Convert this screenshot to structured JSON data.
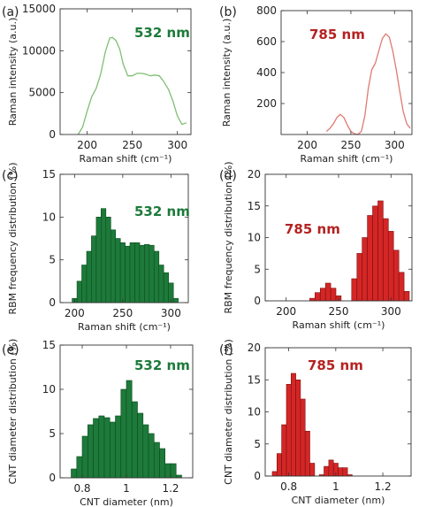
{
  "colors": {
    "green_line": "#7fbf73",
    "red_line": "#e07a72",
    "green_bar": "#1d7a3a",
    "green_bar_edge": "#0e4a1f",
    "red_bar": "#d42626",
    "red_bar_edge": "#7d1010",
    "green_text": "#1d7a3a",
    "red_text": "#b52222"
  },
  "chart_data": [
    {
      "id": "a",
      "panel_label": "(a)",
      "type": "line",
      "annotation": "532 nm",
      "annotation_color": "green",
      "xlabel": "Raman shift (cm⁻¹)",
      "ylabel": "Raman intensity (a.u.)",
      "xlim": [
        170,
        315
      ],
      "ylim": [
        0,
        15000
      ],
      "xticks": [
        200,
        250,
        300
      ],
      "yticks": [
        0,
        5000,
        10000,
        15000
      ],
      "xtick_labels": [
        "200",
        "250",
        "300"
      ],
      "ytick_labels": [
        "0",
        "5000",
        "10000",
        "15000"
      ],
      "series": [
        {
          "color": "green",
          "x": [
            190,
            195,
            200,
            205,
            210,
            215,
            220,
            225,
            228,
            232,
            236,
            240,
            245,
            250,
            255,
            260,
            265,
            270,
            275,
            280,
            285,
            290,
            295,
            300,
            305,
            310
          ],
          "y": [
            0,
            900,
            2800,
            4500,
            5500,
            7200,
            9800,
            11500,
            11600,
            11200,
            10200,
            8400,
            7000,
            7000,
            7300,
            7300,
            7200,
            7000,
            7100,
            7000,
            6300,
            5400,
            4000,
            2200,
            1200,
            1400
          ]
        }
      ]
    },
    {
      "id": "b",
      "panel_label": "(b)",
      "type": "line",
      "annotation": "785 nm",
      "annotation_color": "red",
      "xlabel": "Raman shift (cm⁻¹)",
      "ylabel": "Raman intensity (a.u.)",
      "xlim": [
        170,
        320
      ],
      "ylim": [
        0,
        800
      ],
      "xticks": [
        200,
        250,
        300
      ],
      "yticks": [
        200,
        400,
        600,
        800
      ],
      "xtick_labels": [
        "200",
        "250",
        "300"
      ],
      "ytick_labels": [
        "200",
        "400",
        "600",
        "800"
      ],
      "series": [
        {
          "color": "red",
          "x": [
            222,
            226,
            230,
            234,
            238,
            242,
            246,
            250,
            254,
            258,
            262,
            266,
            270,
            274,
            278,
            282,
            286,
            290,
            294,
            298,
            302,
            306,
            310,
            314,
            318
          ],
          "y": [
            20,
            40,
            70,
            110,
            130,
            110,
            60,
            20,
            5,
            0,
            20,
            120,
            300,
            420,
            460,
            540,
            620,
            650,
            630,
            540,
            420,
            280,
            150,
            70,
            40
          ]
        }
      ]
    },
    {
      "id": "c",
      "panel_label": "(c)",
      "type": "bar",
      "annotation": "532 nm",
      "annotation_color": "green",
      "xlabel": "Raman shift (cm⁻¹)",
      "ylabel": "RBM frequency distribution (%)",
      "xlim": [
        185,
        318
      ],
      "ylim": [
        0,
        15
      ],
      "xticks": [
        200,
        250,
        300
      ],
      "yticks": [
        0,
        5,
        10,
        15
      ],
      "xtick_labels": [
        "200",
        "250",
        "300"
      ],
      "ytick_labels": [
        "0",
        "5",
        "10",
        "15"
      ],
      "bin_width": 5,
      "bin_centers": [
        200,
        205,
        210,
        215,
        220,
        225,
        230,
        235,
        240,
        245,
        250,
        255,
        260,
        265,
        270,
        275,
        280,
        285,
        290,
        295,
        300,
        305
      ],
      "values": [
        0.5,
        2.5,
        4.4,
        6.0,
        7.8,
        10.0,
        11.0,
        10.0,
        8.5,
        7.5,
        7.0,
        6.6,
        7.0,
        7.0,
        6.7,
        6.8,
        6.7,
        6.0,
        4.4,
        3.5,
        2.3,
        0.5
      ],
      "color": "green"
    },
    {
      "id": "d",
      "panel_label": "(d)",
      "type": "bar",
      "annotation": "785 nm",
      "annotation_color": "red",
      "xlabel": "Raman shift (cm⁻¹)",
      "ylabel": "RBM frequency distribution (%)",
      "xlim": [
        180,
        320
      ],
      "ylim": [
        0,
        20
      ],
      "xticks": [
        200,
        250,
        300
      ],
      "yticks": [
        0,
        5,
        10,
        15,
        20
      ],
      "xtick_labels": [
        "200",
        "250",
        "300"
      ],
      "ytick_labels": [
        "0",
        "5",
        "10",
        "15",
        "20"
      ],
      "bin_width": 5,
      "bin_centers": [
        225,
        230,
        235,
        240,
        245,
        250,
        265,
        270,
        275,
        280,
        285,
        290,
        295,
        300,
        305,
        310,
        315
      ],
      "values": [
        0.4,
        1.3,
        2.0,
        2.8,
        2.0,
        0.8,
        3.5,
        7.5,
        10.0,
        13.5,
        15.0,
        15.8,
        13.0,
        11.0,
        8.0,
        4.5,
        1.5
      ],
      "color": "red"
    },
    {
      "id": "e",
      "panel_label": "(e)",
      "type": "bar",
      "annotation": "532 nm",
      "annotation_color": "green",
      "xlabel": "CNT diameter",
      "ylabel": "CNT diameter distribution (%)",
      "xlim": [
        0.7,
        1.3
      ],
      "ylim": [
        0,
        15
      ],
      "xticks": [
        0.8,
        1.0,
        1.2
      ],
      "yticks": [
        0,
        5,
        10,
        15
      ],
      "xtick_labels": [
        "0.8",
        "1",
        "1.2"
      ],
      "ytick_labels": [
        "0",
        "5",
        "10",
        "15"
      ],
      "bin_width": 0.025,
      "bin_centers": [
        0.7625,
        0.7875,
        0.8125,
        0.8375,
        0.8625,
        0.8875,
        0.9125,
        0.9375,
        0.9625,
        0.9875,
        1.0125,
        1.0375,
        1.0625,
        1.0875,
        1.1125,
        1.1375,
        1.1625,
        1.1875,
        1.2125,
        1.2375
      ],
      "values": [
        1.0,
        2.4,
        4.7,
        6.0,
        6.7,
        7.0,
        6.8,
        6.3,
        7.0,
        10.0,
        11.0,
        8.6,
        7.3,
        6.0,
        5.0,
        4.0,
        3.3,
        1.6,
        1.6,
        0.3
      ],
      "color": "green"
    },
    {
      "id": "f",
      "panel_label": "(f)",
      "type": "bar",
      "annotation": "785 nm",
      "annotation_color": "red",
      "xlabel": "CNT diameter (nm)",
      "ylabel": "CNT diameter distribution (%)",
      "xlim": [
        0.7,
        1.32
      ],
      "ylim": [
        0,
        20
      ],
      "xticks": [
        0.8,
        1.0,
        1.2
      ],
      "yticks": [
        0,
        5,
        10,
        15,
        20
      ],
      "xtick_labels": [
        "0.8",
        "1",
        "1.2"
      ],
      "ytick_labels": [
        "0",
        "5",
        "10",
        "15",
        "20"
      ],
      "bin_width": 0.02,
      "bin_centers": [
        0.74,
        0.76,
        0.78,
        0.8,
        0.82,
        0.84,
        0.86,
        0.88,
        0.9,
        0.94,
        0.96,
        0.98,
        1.0,
        1.02,
        1.04,
        1.06
      ],
      "values": [
        0.7,
        3.5,
        8.0,
        14.3,
        16.0,
        15.0,
        12.0,
        7.0,
        2.0,
        0.2,
        1.5,
        2.5,
        2.0,
        1.3,
        1.3,
        0.2
      ],
      "color": "red"
    }
  ],
  "axis_units": {
    "e_xlabel_unit": "(nm)"
  }
}
